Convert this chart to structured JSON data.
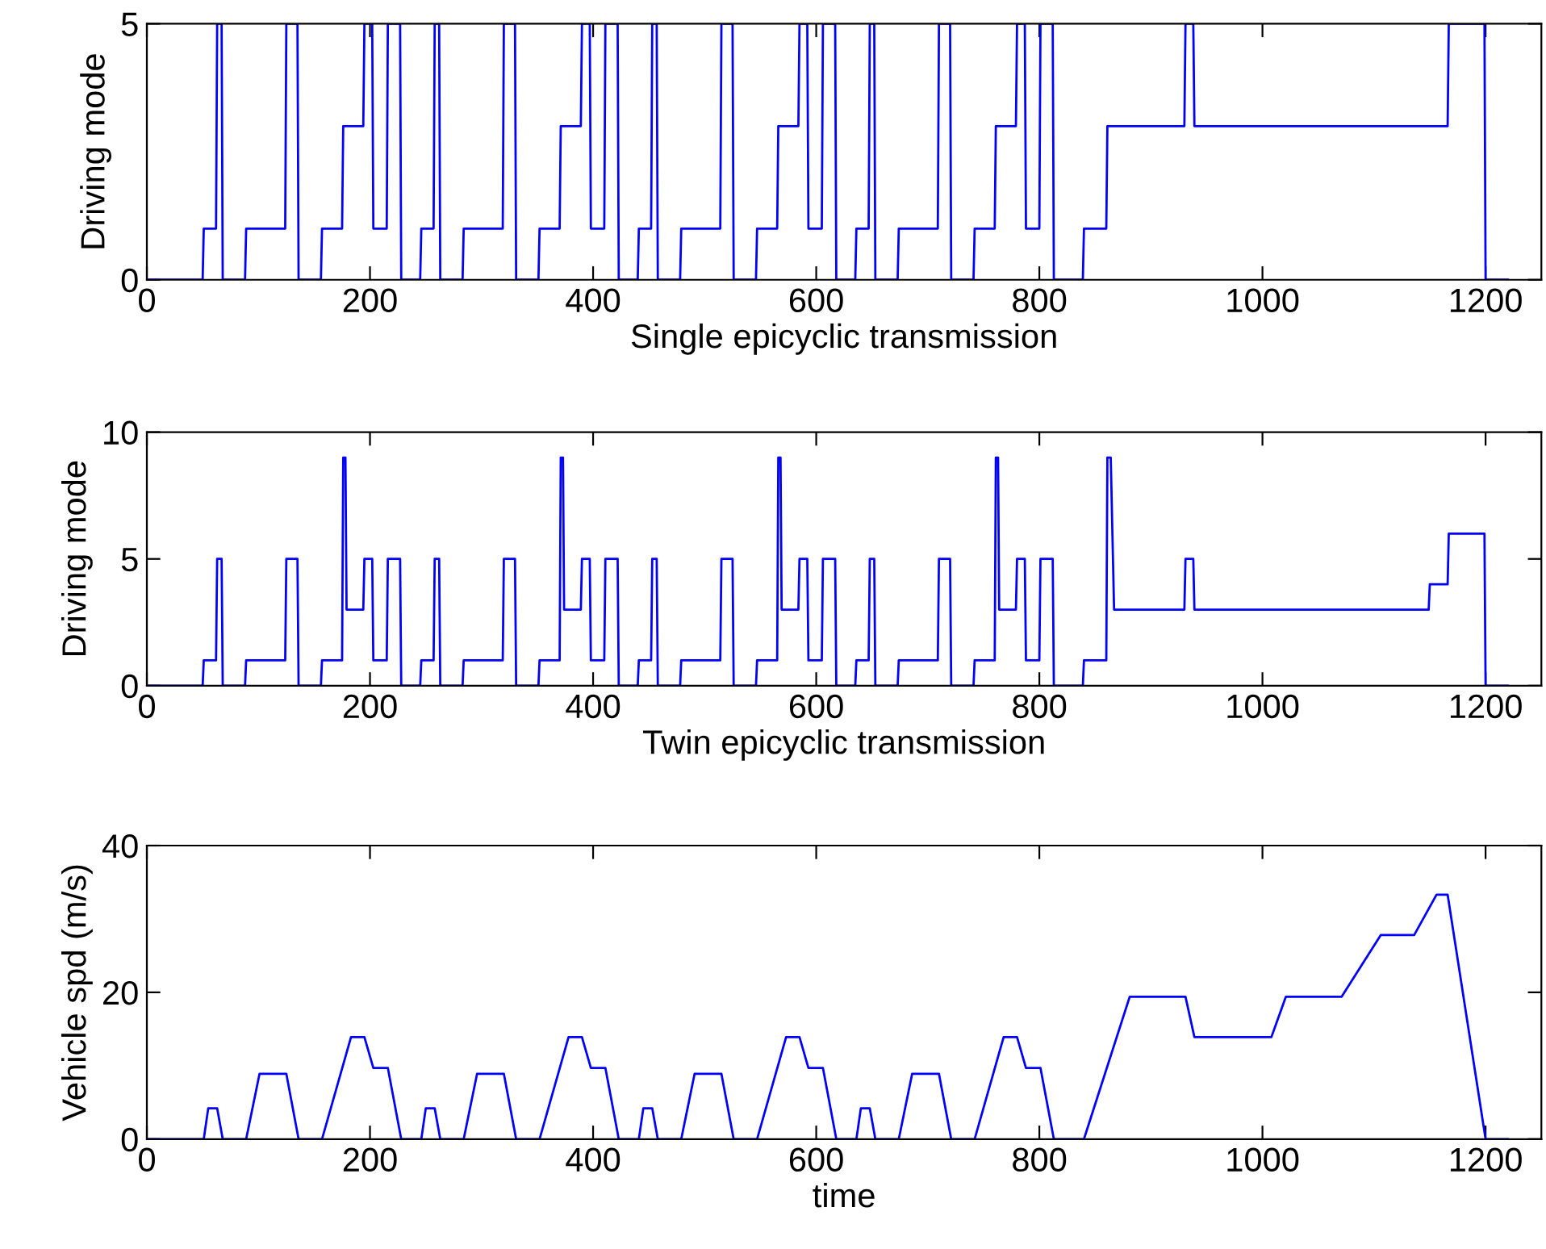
{
  "chart_data": [
    {
      "type": "line",
      "xlabel": "Single epicyclic transmission",
      "ylabel": "Driving mode",
      "xlim": [
        0,
        1250
      ],
      "xticks": [
        0,
        200,
        400,
        600,
        800,
        1000,
        1200
      ],
      "ylim": [
        0,
        5
      ],
      "yticks": [
        0,
        5
      ],
      "grid": false,
      "legend": false,
      "series": [
        {
          "color": "#0000ff",
          "x": [
            0,
            50,
            51,
            62,
            63,
            67,
            68,
            88,
            89,
            124,
            125,
            135,
            136,
            156,
            157,
            175,
            176,
            194,
            195,
            202,
            203,
            215,
            216,
            227,
            228,
            245,
            246,
            257,
            258,
            262,
            263,
            283,
            284,
            319,
            320,
            330,
            331,
            351,
            352,
            370,
            371,
            389,
            390,
            397,
            398,
            410,
            411,
            422,
            423,
            440,
            441,
            452,
            453,
            457,
            458,
            478,
            479,
            514,
            515,
            525,
            526,
            546,
            547,
            565,
            566,
            584,
            585,
            592,
            593,
            605,
            606,
            617,
            618,
            635,
            636,
            647,
            648,
            652,
            653,
            673,
            674,
            709,
            710,
            720,
            721,
            741,
            742,
            760,
            761,
            779,
            780,
            787,
            788,
            800,
            801,
            812,
            813,
            839,
            840,
            860,
            861,
            930,
            931,
            938,
            939,
            1166,
            1167,
            1199,
            1200,
            1220
          ],
          "values": [
            0,
            0,
            1,
            1,
            5,
            5,
            0,
            0,
            1,
            1,
            5,
            5,
            0,
            0,
            1,
            1,
            3,
            3,
            5,
            5,
            1,
            1,
            5,
            5,
            0,
            0,
            1,
            1,
            5,
            5,
            0,
            0,
            1,
            1,
            5,
            5,
            0,
            0,
            1,
            1,
            3,
            3,
            5,
            5,
            1,
            1,
            5,
            5,
            0,
            0,
            1,
            1,
            5,
            5,
            0,
            0,
            1,
            1,
            5,
            5,
            0,
            0,
            1,
            1,
            3,
            3,
            5,
            5,
            1,
            1,
            5,
            5,
            0,
            0,
            1,
            1,
            5,
            5,
            0,
            0,
            1,
            1,
            5,
            5,
            0,
            0,
            1,
            1,
            3,
            3,
            5,
            5,
            1,
            1,
            5,
            5,
            0,
            0,
            1,
            1,
            3,
            3,
            5,
            5,
            3,
            3,
            5,
            5,
            0,
            0
          ]
        }
      ]
    },
    {
      "type": "line",
      "xlabel": "Twin epicyclic transmission",
      "ylabel": "Driving mode",
      "xlim": [
        0,
        1250
      ],
      "xticks": [
        0,
        200,
        400,
        600,
        800,
        1000,
        1200
      ],
      "ylim": [
        0,
        10
      ],
      "yticks": [
        0,
        5,
        10
      ],
      "grid": false,
      "legend": false,
      "series": [
        {
          "color": "#0000ff",
          "x": [
            0,
            50,
            51,
            62,
            63,
            67,
            68,
            88,
            89,
            124,
            125,
            135,
            136,
            156,
            157,
            175,
            176,
            178,
            179,
            194,
            195,
            202,
            203,
            215,
            216,
            227,
            228,
            245,
            246,
            257,
            258,
            262,
            263,
            283,
            284,
            319,
            320,
            330,
            331,
            351,
            352,
            370,
            371,
            373,
            374,
            389,
            390,
            397,
            398,
            410,
            411,
            422,
            423,
            440,
            441,
            452,
            453,
            457,
            458,
            478,
            479,
            514,
            515,
            525,
            526,
            546,
            547,
            565,
            566,
            568,
            569,
            584,
            585,
            592,
            593,
            605,
            606,
            617,
            618,
            635,
            636,
            647,
            648,
            652,
            653,
            673,
            674,
            709,
            710,
            720,
            721,
            741,
            742,
            760,
            761,
            763,
            764,
            779,
            780,
            787,
            788,
            800,
            801,
            812,
            813,
            839,
            840,
            860,
            861,
            864,
            867,
            930,
            931,
            938,
            939,
            1149,
            1150,
            1166,
            1167,
            1199,
            1200,
            1220
          ],
          "values": [
            0,
            0,
            1,
            1,
            5,
            5,
            0,
            0,
            1,
            1,
            5,
            5,
            0,
            0,
            1,
            1,
            9,
            9,
            3,
            3,
            5,
            5,
            1,
            1,
            5,
            5,
            0,
            0,
            1,
            1,
            5,
            5,
            0,
            0,
            1,
            1,
            5,
            5,
            0,
            0,
            1,
            1,
            9,
            9,
            3,
            3,
            5,
            5,
            1,
            1,
            5,
            5,
            0,
            0,
            1,
            1,
            5,
            5,
            0,
            0,
            1,
            1,
            5,
            5,
            0,
            0,
            1,
            1,
            9,
            9,
            3,
            3,
            5,
            5,
            1,
            1,
            5,
            5,
            0,
            0,
            1,
            1,
            5,
            5,
            0,
            0,
            1,
            1,
            5,
            5,
            0,
            0,
            1,
            1,
            9,
            9,
            3,
            3,
            5,
            5,
            1,
            1,
            5,
            5,
            0,
            0,
            1,
            1,
            9,
            9,
            3,
            3,
            5,
            5,
            3,
            3,
            4,
            4,
            6,
            6,
            0,
            0
          ]
        }
      ]
    },
    {
      "type": "line",
      "xlabel": "time",
      "ylabel": "Vehicle spd (m/s)",
      "xlim": [
        0,
        1250
      ],
      "xticks": [
        0,
        200,
        400,
        600,
        800,
        1000,
        1200
      ],
      "ylim": [
        0,
        40
      ],
      "yticks": [
        0,
        20,
        40
      ],
      "grid": false,
      "legend": false,
      "series": [
        {
          "color": "#0000ff",
          "x": [
            0,
            51,
            55,
            63,
            68,
            89,
            101,
            125,
            136,
            157,
            183,
            195,
            203,
            216,
            228,
            246,
            250,
            258,
            263,
            284,
            296,
            320,
            331,
            352,
            378,
            390,
            398,
            411,
            423,
            441,
            445,
            453,
            458,
            479,
            491,
            515,
            526,
            547,
            573,
            585,
            593,
            606,
            618,
            636,
            640,
            648,
            653,
            674,
            686,
            710,
            721,
            742,
            768,
            780,
            788,
            801,
            813,
            840,
            881,
            931,
            939,
            1008,
            1021,
            1071,
            1106,
            1136,
            1156,
            1166,
            1200,
            1220
          ],
          "values": [
            0,
            0,
            4.2,
            4.2,
            0,
            0,
            8.9,
            8.9,
            0,
            0,
            13.9,
            13.9,
            9.7,
            9.7,
            0,
            0,
            4.2,
            4.2,
            0,
            0,
            8.9,
            8.9,
            0,
            0,
            13.9,
            13.9,
            9.7,
            9.7,
            0,
            0,
            4.2,
            4.2,
            0,
            0,
            8.9,
            8.9,
            0,
            0,
            13.9,
            13.9,
            9.7,
            9.7,
            0,
            0,
            4.2,
            4.2,
            0,
            0,
            8.9,
            8.9,
            0,
            0,
            13.9,
            13.9,
            9.7,
            9.7,
            0,
            0,
            19.4,
            19.4,
            13.9,
            13.9,
            19.4,
            19.4,
            27.8,
            27.8,
            33.3,
            33.3,
            0,
            0
          ]
        }
      ]
    }
  ]
}
